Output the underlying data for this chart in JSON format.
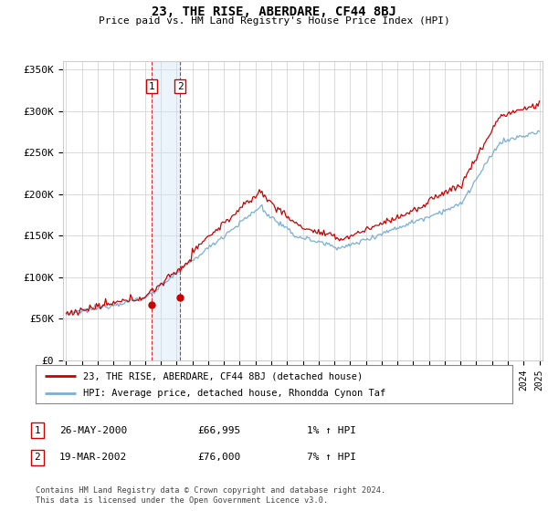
{
  "title": "23, THE RISE, ABERDARE, CF44 8BJ",
  "subtitle": "Price paid vs. HM Land Registry's House Price Index (HPI)",
  "ylabel_ticks": [
    "£0",
    "£50K",
    "£100K",
    "£150K",
    "£200K",
    "£250K",
    "£300K",
    "£350K"
  ],
  "ytick_values": [
    0,
    50000,
    100000,
    150000,
    200000,
    250000,
    300000,
    350000
  ],
  "ylim": [
    0,
    360000
  ],
  "xlim_start": 1994.8,
  "xlim_end": 2025.2,
  "hpi_color": "#7aafd4",
  "price_color": "#cc0000",
  "transaction1_date": 2000.4,
  "transaction1_price": 66995,
  "transaction2_date": 2002.22,
  "transaction2_price": 76000,
  "sale1_label": "1",
  "sale2_label": "2",
  "sale1_date_str": "26-MAY-2000",
  "sale1_price_str": "£66,995",
  "sale1_hpi_str": "1% ↑ HPI",
  "sale2_date_str": "19-MAR-2002",
  "sale2_price_str": "£76,000",
  "sale2_hpi_str": "7% ↑ HPI",
  "legend_line1": "23, THE RISE, ABERDARE, CF44 8BJ (detached house)",
  "legend_line2": "HPI: Average price, detached house, Rhondda Cynon Taf",
  "footer": "Contains HM Land Registry data © Crown copyright and database right 2024.\nThis data is licensed under the Open Government Licence v3.0.",
  "background_color": "#ffffff",
  "grid_color": "#cccccc",
  "span_color": "#d0e4f5"
}
